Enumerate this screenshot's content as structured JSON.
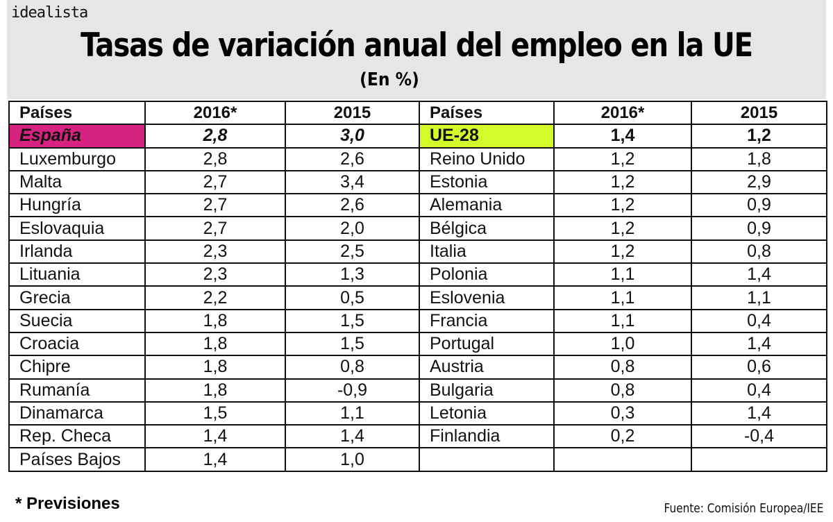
{
  "logo": "idealista",
  "title": "Tasas de variación anual del empleo en la UE",
  "subtitle": "(En %)",
  "colors": {
    "spain_highlight": "#d6237f",
    "eu_highlight": "#d5fa2a",
    "band": "#e6e6e6"
  },
  "chart_data": {
    "type": "table",
    "columns": [
      "Países",
      "2016*",
      "2015",
      "Países",
      "2016*",
      "2015"
    ],
    "left_rows": [
      [
        "España",
        "2,8",
        "3,0"
      ],
      [
        "Luxemburgo",
        "2,8",
        "2,6"
      ],
      [
        "Malta",
        "2,7",
        "3,4"
      ],
      [
        "Hungría",
        "2,7",
        "2,6"
      ],
      [
        "Eslovaquia",
        "2,7",
        "2,0"
      ],
      [
        "Irlanda",
        "2,3",
        "2,5"
      ],
      [
        "Lituania",
        "2,3",
        "1,3"
      ],
      [
        "Grecia",
        "2,2",
        "0,5"
      ],
      [
        "Suecia",
        "1,8",
        "1,5"
      ],
      [
        "Croacia",
        "1,8",
        "1,5"
      ],
      [
        "Chipre",
        "1,8",
        "0,8"
      ],
      [
        "Rumanía",
        "1,8",
        "-0,9"
      ],
      [
        "Dinamarca",
        "1,5",
        "1,1"
      ],
      [
        "Rep. Checa",
        "1,4",
        "1,4"
      ],
      [
        "Países Bajos",
        "1,4",
        "1,0"
      ]
    ],
    "right_rows": [
      [
        "UE-28",
        "1,4",
        "1,2"
      ],
      [
        "Reino Unido",
        "1,2",
        "1,8"
      ],
      [
        "Estonia",
        "1,2",
        "2,9"
      ],
      [
        "Alemania",
        "1,2",
        "0,9"
      ],
      [
        "Bélgica",
        "1,2",
        "0,9"
      ],
      [
        "Italia",
        "1,2",
        "0,8"
      ],
      [
        "Polonia",
        "1,1",
        "1,4"
      ],
      [
        "Eslovenia",
        "1,1",
        "1,1"
      ],
      [
        "Francia",
        "1,1",
        "0,4"
      ],
      [
        "Portugal",
        "1,0",
        "1,4"
      ],
      [
        "Austria",
        "0,8",
        "0,6"
      ],
      [
        "Bulgaria",
        "0,8",
        "0,4"
      ],
      [
        "Letonia",
        "0,3",
        "1,4"
      ],
      [
        "Finlandia",
        "0,2",
        "-0,4"
      ]
    ]
  },
  "footnote": "* Previsiones",
  "source": "Fuente: Comisión Europea/IEE"
}
